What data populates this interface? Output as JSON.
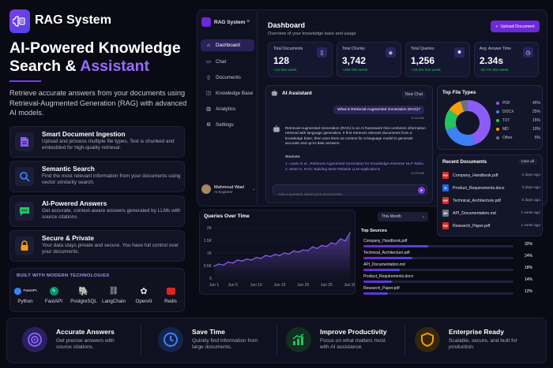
{
  "brand": {
    "name": "RAG System"
  },
  "hero": {
    "title_line1": "AI-Powered Knowledge",
    "title_part2": "Search & ",
    "title_accent": "Assistant",
    "description": "Retrieve accurate answers from your documents using Retrieval-Augmented Generation (RAG) with advanced AI models."
  },
  "features": [
    {
      "title": "Smart Document Ingestion",
      "desc": "Upload and process multiple file types. Text is chunked and embedded for high-quality retrieval.",
      "icon": "document-icon",
      "color": "#8b5cf6"
    },
    {
      "title": "Semantic Search",
      "desc": "Find the most relevant information from your documents using vector similarity search.",
      "icon": "search-icon",
      "color": "#3b82f6"
    },
    {
      "title": "AI-Powered Answers",
      "desc": "Get accurate, context-aware answers generated by LLMs with source citations.",
      "icon": "chat-icon",
      "color": "#22c55e"
    },
    {
      "title": "Secure & Private",
      "desc": "Your data stays private and secure. You have full control over your documents.",
      "icon": "lock-icon",
      "color": "#f59e0b"
    }
  ],
  "tech": {
    "heading": "BUILT WITH MODERN TECHNOLOGIES",
    "items": [
      {
        "name": "Python",
        "logo": "FastAPI",
        "icon": "python-icon"
      },
      {
        "name": "FastAPI",
        "icon": "fastapi-icon"
      },
      {
        "name": "PostgreSQL",
        "icon": "postgresql-icon"
      },
      {
        "name": "LangChain",
        "icon": "langchain-icon"
      },
      {
        "name": "OpenAI",
        "icon": "openai-icon"
      },
      {
        "name": "Redis",
        "icon": "redis-icon"
      }
    ]
  },
  "dashboard": {
    "brand": "RAG System",
    "nav": [
      "Dashboard",
      "Chat",
      "Documents",
      "Knowledge Base",
      "Analytics",
      "Settings"
    ],
    "active_nav": "Dashboard",
    "user": {
      "name": "Mahmoud Wael",
      "role": "AI Engineer"
    },
    "title": "Dashboard",
    "subtitle": "Overview of your knowledge base and usage",
    "upload_label": "Upload Document",
    "stats": [
      {
        "label": "Total Documents",
        "value": "128",
        "change": "+12 this week",
        "icon": "file-icon"
      },
      {
        "label": "Total Chunks",
        "value": "3,742",
        "change": "+256 this week",
        "icon": "layers-icon"
      },
      {
        "label": "Total Queries",
        "value": "1,256",
        "change": "+18.4% this week",
        "icon": "users-icon"
      },
      {
        "label": "Avg. Answer Time",
        "value": "2.34s",
        "change": "-16.7% this week",
        "icon": "clock-icon"
      }
    ]
  },
  "chat": {
    "title": "AI Assistant",
    "new_chat": "New Chat",
    "question": "What is Retrieval-Augmented Generation (RAG)?",
    "question_time": "10:24 AM",
    "answer": "Retrieval-Augmented Generation (RAG) is an AI framework that combines information retrieval with language generation. It first retrieves relevant documents from a knowledge base, then uses them as context for a language model to generate accurate and up-to-date answers.",
    "sources_label": "Sources:",
    "sources": [
      "1. Lewis et al., Retrieval-Augmented Generation for Knowledge-Intensive NLP Tasks",
      "2. Meta AI, RAG: Building More Reliable LLM Applications"
    ],
    "answer_time": "10:25 AM",
    "placeholder": "Ask a question about your documents..."
  },
  "file_types": {
    "title": "Top File Types",
    "items": [
      {
        "label": "PDF",
        "percent": "45%",
        "value": 45,
        "color": "#8b5cf6"
      },
      {
        "label": "DOCX",
        "percent": "25%",
        "value": 25,
        "color": "#3b82f6"
      },
      {
        "label": "TXT",
        "percent": "15%",
        "value": 15,
        "color": "#22c55e"
      },
      {
        "label": "MD",
        "percent": "10%",
        "value": 10,
        "color": "#f59e0b"
      },
      {
        "label": "Other",
        "percent": "5%",
        "value": 5,
        "color": "#6b7280"
      }
    ]
  },
  "recent_docs": {
    "title": "Recent Documents",
    "view_all": "View all",
    "items": [
      {
        "name": "Company_Handbook.pdf",
        "time": "2 days ago",
        "type": "PDF",
        "color": "#dc2626"
      },
      {
        "name": "Product_Requirements.docx",
        "time": "3 days ago",
        "type": "W",
        "color": "#2563eb"
      },
      {
        "name": "Technical_Architecture.pdf",
        "time": "5 days ago",
        "type": "PDF",
        "color": "#dc2626"
      },
      {
        "name": "API_Documentation.md",
        "time": "1 week ago",
        "type": "MD",
        "color": "#6b7280"
      },
      {
        "name": "Research_Paper.pdf",
        "time": "1 week ago",
        "type": "PDF",
        "color": "#dc2626"
      }
    ]
  },
  "chart_data": {
    "type": "line",
    "title": "Queries Over Time",
    "x_ticks": [
      "Jun 1",
      "Jun 5",
      "Jun 10",
      "Jun 15",
      "Jun 20",
      "Jun 25",
      "Jun 30"
    ],
    "y_ticks": [
      "0",
      "0.5K",
      "1K",
      "1.5K",
      "2K"
    ],
    "ylim": [
      0,
      2000
    ],
    "x": [
      1,
      2,
      3,
      4,
      5,
      6,
      7,
      8,
      9,
      10,
      11,
      12,
      13,
      14,
      15,
      16,
      17,
      18,
      19,
      20,
      21,
      22,
      23,
      24,
      25,
      26,
      27,
      28,
      29,
      30
    ],
    "values": [
      480,
      560,
      520,
      640,
      600,
      720,
      680,
      760,
      720,
      820,
      780,
      900,
      860,
      940,
      900,
      1000,
      960,
      1080,
      1040,
      1120,
      1100,
      1240,
      1180,
      1300,
      1260,
      1400,
      1360,
      1560,
      1480,
      1800
    ],
    "color": "#8b5cf6",
    "range_label": "This Month"
  },
  "top_sources": {
    "title": "Top Sources",
    "items": [
      {
        "name": "Company_Handbook.pdf",
        "percent": "32%",
        "value": 32
      },
      {
        "name": "Technical_Architecture.pdf",
        "percent": "24%",
        "value": 24
      },
      {
        "name": "API_Documentation.md",
        "percent": "18%",
        "value": 18
      },
      {
        "name": "Product_Requirements.docx",
        "percent": "14%",
        "value": 14
      },
      {
        "name": "Research_Paper.pdf",
        "percent": "12%",
        "value": 12
      }
    ]
  },
  "benefits": [
    {
      "title": "Accurate Answers",
      "desc": "Get precise answers with source citations.",
      "icon": "target-icon",
      "color": "#8b5cf6"
    },
    {
      "title": "Save Time",
      "desc": "Quickly find information from large documents.",
      "icon": "clock-icon",
      "color": "#3b82f6"
    },
    {
      "title": "Improve Productivity",
      "desc": "Focus on what matters most with AI assistance.",
      "icon": "growth-chart-icon",
      "color": "#22c55e"
    },
    {
      "title": "Enterprise Ready",
      "desc": "Scalable, secure, and built for production.",
      "icon": "shield-icon",
      "color": "#f59e0b"
    }
  ]
}
